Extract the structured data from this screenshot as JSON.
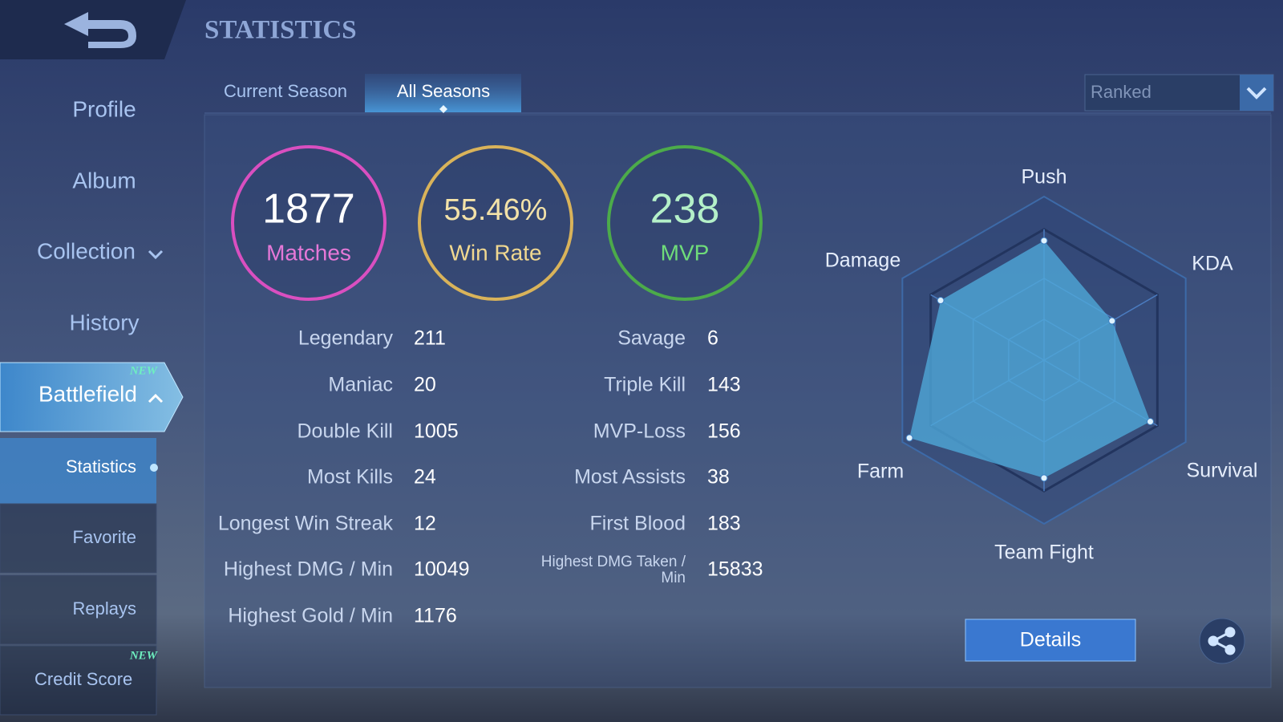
{
  "header": {
    "title": "STATISTICS"
  },
  "sidebar": [
    {
      "label": "Profile"
    },
    {
      "label": "Album"
    },
    {
      "label": "Collection"
    },
    {
      "label": "History"
    },
    {
      "label": "Battlefield",
      "badge": "NEW"
    },
    {
      "label": "Statistics"
    },
    {
      "label": "Favorite"
    },
    {
      "label": "Replays"
    },
    {
      "label": "Credit Score",
      "badge": "NEW"
    }
  ],
  "tabs": [
    "Current Season",
    "All Seasons"
  ],
  "dropdown": "Ranked",
  "summary": [
    {
      "value": 1877,
      "label": "Matches",
      "color": "#d94fc0"
    },
    {
      "value": "55.46%",
      "label": "Win Rate",
      "color": "#d9b35a"
    },
    {
      "value": 238,
      "label": "MVP",
      "color": "#4cab4a"
    }
  ],
  "stats": {
    "left": [
      [
        "Legendary",
        211
      ],
      [
        "Maniac",
        20
      ],
      [
        "Double Kill",
        1005
      ],
      [
        "Most Kills",
        24
      ],
      [
        "Longest Win Streak",
        12
      ],
      [
        "Highest DMG / Min",
        10049
      ],
      [
        "Highest Gold / Min",
        1176
      ]
    ],
    "right": [
      [
        "Savage",
        6
      ],
      [
        "Triple Kill",
        143
      ],
      [
        "MVP-Loss",
        156
      ],
      [
        "Most Assists",
        38
      ],
      [
        "First Blood",
        183
      ],
      [
        "Highest DMG Taken / Min",
        15833
      ]
    ]
  },
  "chart_data": {
    "type": "radar",
    "categories": [
      "Push",
      "KDA",
      "Survival",
      "Team Fight",
      "Farm",
      "Damage"
    ],
    "values": [
      73,
      48,
      75,
      72,
      95,
      73
    ],
    "ylim": [
      0,
      100
    ],
    "color": "#4fa8d8"
  },
  "details_button": "Details"
}
